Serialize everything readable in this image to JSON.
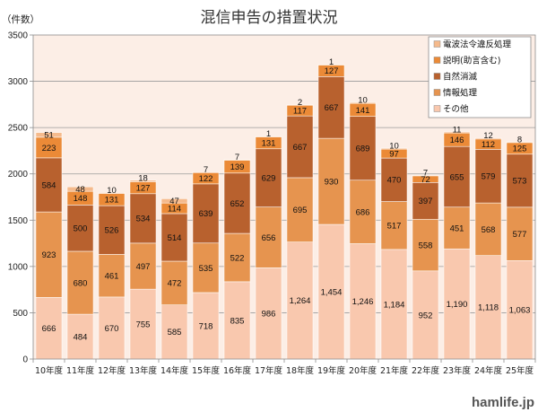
{
  "watermark": "hamlife.jp",
  "chart_data": {
    "type": "bar",
    "stacked": true,
    "title": "混信申告の措置状況",
    "ylabel": "（件数）",
    "xlabel": "",
    "categories": [
      "10年度",
      "11年度",
      "12年度",
      "13年度",
      "14年度",
      "15年度",
      "16年度",
      "17年度",
      "18年度",
      "19年度",
      "20年度",
      "21年度",
      "22年度",
      "23年度",
      "24年度",
      "25年度"
    ],
    "ylim": [
      0,
      3500
    ],
    "yticks": [
      0,
      500,
      1000,
      1500,
      2000,
      2500,
      3000,
      3500
    ],
    "grid": true,
    "legend": "top-right",
    "series": [
      {
        "name": "その他",
        "color": "#F9C8AE",
        "values": [
          666,
          484,
          670,
          755,
          585,
          718,
          835,
          986,
          1264,
          1454,
          1246,
          1184,
          952,
          1190,
          1118,
          1063
        ]
      },
      {
        "name": "情報処理",
        "color": "#E6944F",
        "values": [
          923,
          680,
          461,
          497,
          472,
          535,
          522,
          656,
          695,
          930,
          686,
          517,
          558,
          451,
          568,
          577
        ]
      },
      {
        "name": "自然消滅",
        "color": "#B8612E",
        "values": [
          584,
          500,
          526,
          534,
          514,
          639,
          652,
          629,
          667,
          667,
          689,
          470,
          397,
          655,
          579,
          573
        ]
      },
      {
        "name": "説明(助言含む)",
        "color": "#EB8A37",
        "values": [
          223,
          148,
          131,
          127,
          114,
          122,
          139,
          131,
          117,
          127,
          141,
          97,
          72,
          146,
          112,
          125
        ]
      },
      {
        "name": "電波法令違反処理",
        "color": "#F5BA8C",
        "values": [
          51,
          48,
          10,
          18,
          47,
          7,
          7,
          1,
          2,
          1,
          10,
          10,
          7,
          11,
          12,
          8
        ]
      }
    ]
  }
}
